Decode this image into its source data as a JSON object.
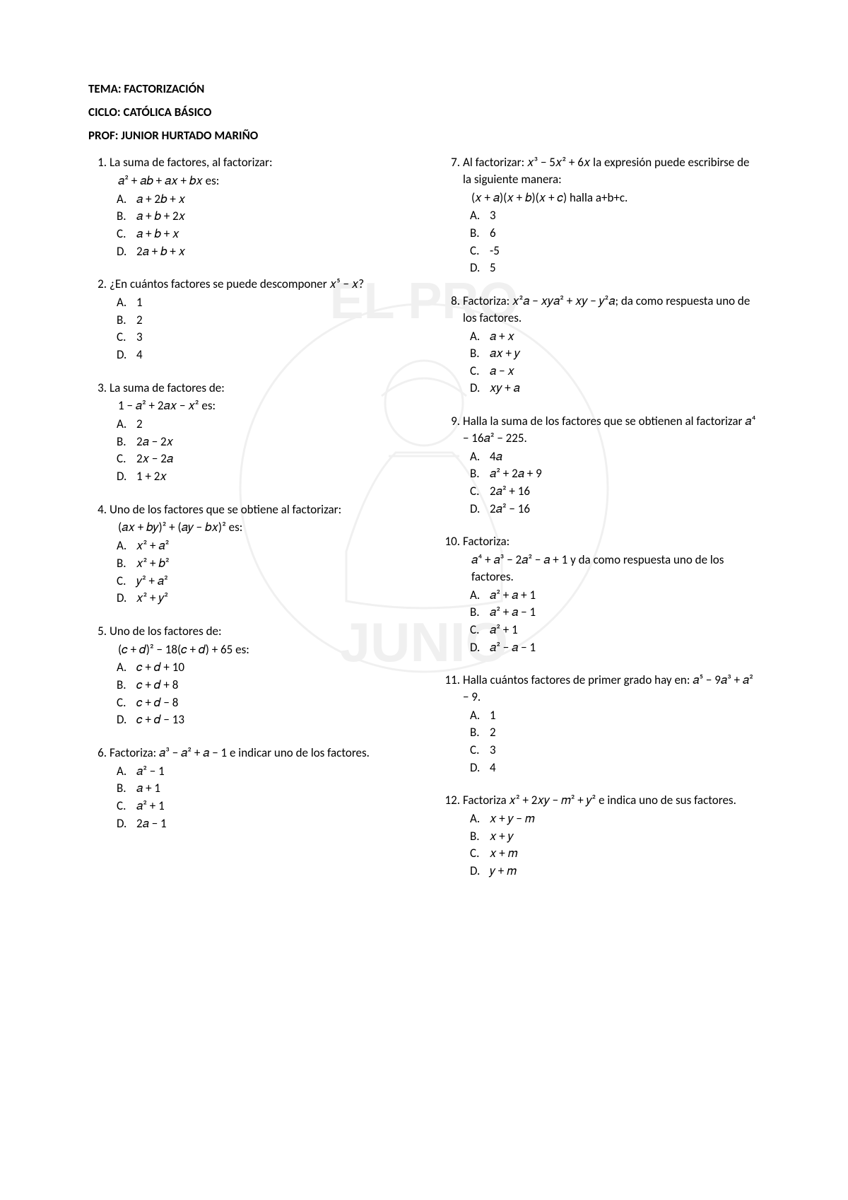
{
  "header": {
    "tema": "TEMA: FACTORIZACIÓN",
    "ciclo": "CICLO: CATÓLICA BÁSICO",
    "prof": "PROF: JUNIOR HURTADO MARIÑO"
  },
  "watermark": {
    "top_text": "EL PRO",
    "bottom_text": "JUNIO",
    "color": "#d0d0d0"
  },
  "left": [
    {
      "stem": "La suma de factores, al factorizar:",
      "stem2": " 𝑎² + 𝑎𝑏 + 𝑎𝑥 + 𝑏𝑥 es:",
      "options": [
        "𝑎 + 2𝑏 + 𝑥",
        "𝑎 + 𝑏 + 2𝑥",
        "𝑎 + 𝑏 + 𝑥",
        "2𝑎 + 𝑏 + 𝑥"
      ]
    },
    {
      "stem": "¿En cuántos factores se puede descomponer 𝑥⁵ − 𝑥?",
      "options": [
        "1",
        "2",
        "3",
        "4"
      ]
    },
    {
      "stem": "La suma de factores de:",
      "stem2": " 1 − 𝑎² + 2𝑎𝑥 − 𝑥² es:",
      "options": [
        "2",
        "2𝑎 − 2𝑥",
        "2𝑥 − 2𝑎",
        "1 + 2𝑥"
      ]
    },
    {
      "stem": "Uno de los factores que se obtiene al factorizar:",
      "stem2": " (𝑎𝑥 + 𝑏𝑦)² + (𝑎𝑦 − 𝑏𝑥)² es:",
      "options": [
        "𝑥² + 𝑎²",
        "𝑥² + 𝑏²",
        "𝑦² + 𝑎²",
        "𝑥² + 𝑦²"
      ]
    },
    {
      "stem": "Uno de los factores de:",
      "stem2": " (𝑐 + 𝑑)² − 18(𝑐 + 𝑑) + 65 es:",
      "options": [
        "𝑐 + 𝑑 + 10",
        "𝑐 + 𝑑 + 8",
        "𝑐 + 𝑑 − 8",
        "𝑐 + 𝑑 − 13"
      ]
    },
    {
      "stem": "Factoriza: 𝑎³ − 𝑎² + 𝑎 − 1 e indicar uno de los factores.",
      "options": [
        "𝑎² − 1",
        "𝑎 + 1",
        "𝑎² + 1",
        "2𝑎 − 1"
      ]
    }
  ],
  "right": [
    {
      "stem": "Al factorizar: 𝑥³ − 5𝑥² + 6𝑥 la expresión puede escribirse de la siguiente manera:",
      "stem2": " (𝑥 + 𝑎)(𝑥 + 𝑏)(𝑥 + 𝑐) halla a+b+c.",
      "options": [
        "3",
        "6",
        "-5",
        "5"
      ]
    },
    {
      "stem": "Factoriza: 𝑥²𝑎 − 𝑥𝑦𝑎² + 𝑥𝑦 − 𝑦²𝑎; da como respuesta uno de los factores.",
      "options": [
        "𝑎 + 𝑥",
        "𝑎𝑥 + 𝑦",
        "𝑎 − 𝑥",
        "𝑥𝑦 + 𝑎"
      ]
    },
    {
      "stem": "Halla la suma de los factores que se obtienen al factorizar 𝑎⁴ − 16𝑎² − 225.",
      "options": [
        "4𝑎",
        "𝑎² + 2𝑎 + 9",
        "2𝑎² + 16",
        "2𝑎² − 16"
      ]
    },
    {
      "stem": "Factoriza:",
      "stem2": " 𝑎⁴ + 𝑎³ − 2𝑎² − 𝑎 + 1 y da como respuesta uno de los factores.",
      "options": [
        "𝑎² + 𝑎 + 1",
        "𝑎² + 𝑎 − 1",
        "𝑎² + 1",
        "𝑎² − 𝑎 − 1"
      ]
    },
    {
      "stem": "Halla cuántos factores de primer grado hay en: 𝑎⁵ − 9𝑎³ + 𝑎² − 9.",
      "options": [
        "1",
        "2",
        "3",
        "4"
      ]
    },
    {
      "stem": "Factoriza 𝑥² + 2𝑥𝑦 − 𝑚² + 𝑦² e indica uno de sus factores.",
      "options": [
        "𝑥 + 𝑦 − 𝑚",
        "𝑥 + 𝑦",
        "𝑥 + 𝑚",
        "𝑦 + 𝑚"
      ]
    }
  ],
  "letters": [
    "A.",
    "B.",
    "C.",
    "D."
  ]
}
